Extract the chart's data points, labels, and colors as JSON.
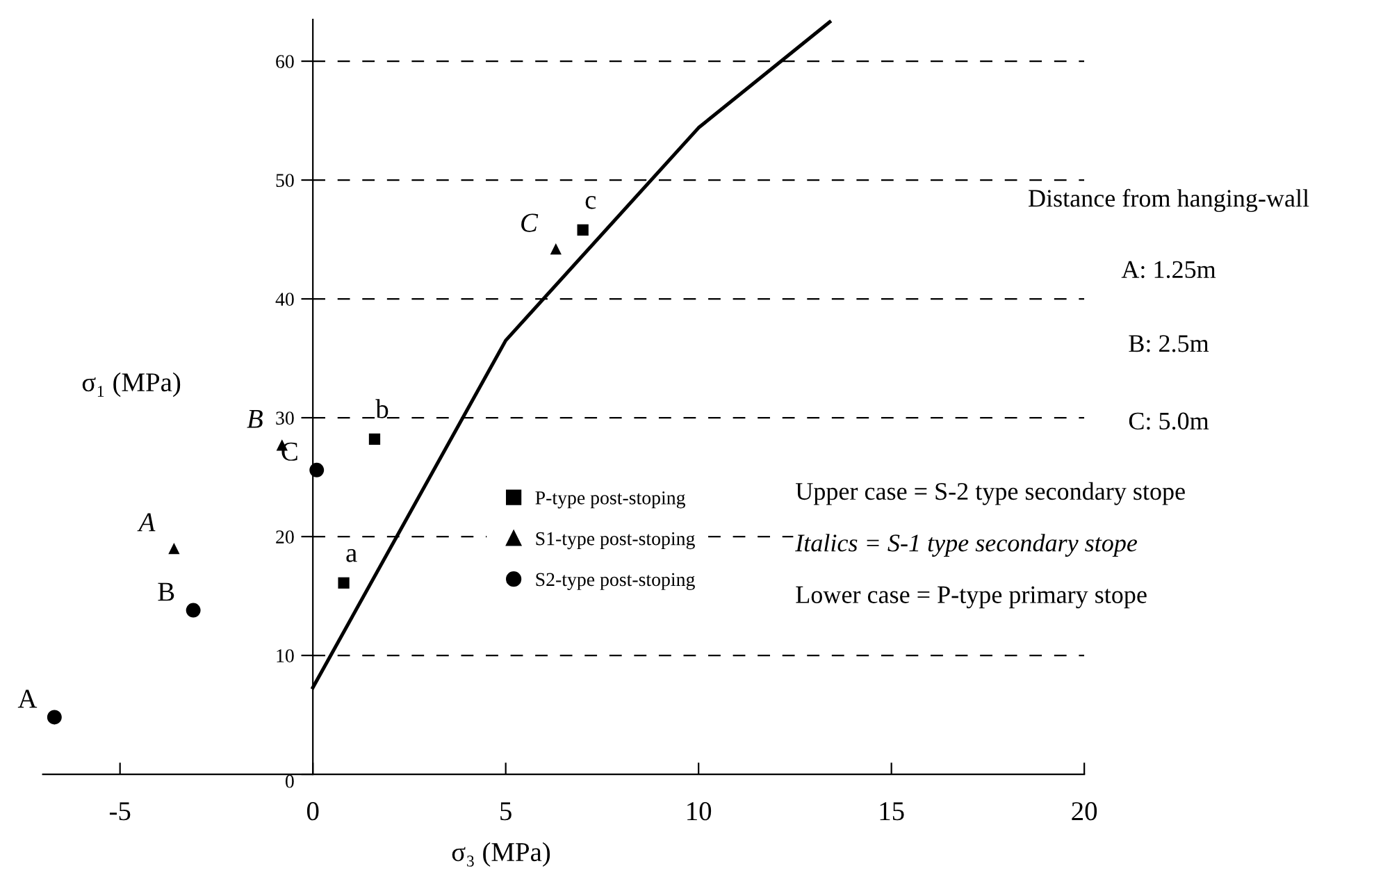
{
  "chart_data": {
    "type": "scatter",
    "xlabel": "σ₃ (MPa)",
    "ylabel": "σ₁ (MPa)",
    "series": [
      {
        "name": "P-type post-stoping",
        "color": "#000000",
        "marker": "square",
        "x": [
          0.8,
          1.6,
          7.0
        ],
        "values": [
          16.1,
          28.2,
          45.8
        ],
        "value_labels": [
          "a",
          "b",
          "c"
        ]
      },
      {
        "name": "S1-type post-stoping",
        "color": "#000000",
        "marker": "triangle",
        "x": [
          -3.6,
          -0.8,
          6.3
        ],
        "values": [
          19.0,
          27.7,
          44.2
        ],
        "value_labels": [
          "A",
          "B",
          "C"
        ]
      },
      {
        "name": "S2-type post-stoping",
        "color": "#000000",
        "marker": "circle",
        "x": [
          -6.7,
          -3.1,
          0.1
        ],
        "values": [
          4.8,
          13.8,
          25.6
        ],
        "value_labels": [
          "A",
          "B",
          "C"
        ]
      },
      {
        "type": "line",
        "color": "#000000",
        "marker": "none",
        "line_style": "solid",
        "x": [
          0,
          5,
          10,
          13.4
        ],
        "values": [
          7.3,
          36.5,
          54.4,
          63.3
        ]
      }
    ],
    "xlim": [
      -7,
      20
    ],
    "xticks": [
      -5,
      0,
      5,
      10,
      15,
      20
    ],
    "ylim": [
      0,
      63.5
    ],
    "yticks": [
      0,
      10,
      20,
      30,
      40,
      50,
      60
    ],
    "grid": "y",
    "legend": "center",
    "annotations": [
      "Distance from hanging-wall",
      "A: 1.25m",
      "B: 2.5m",
      "C: 5.0m",
      "Upper case = S-2 type secondary stope",
      "Italics = S-1 type secondary stope",
      "Lower case = P-type primary stope"
    ]
  }
}
